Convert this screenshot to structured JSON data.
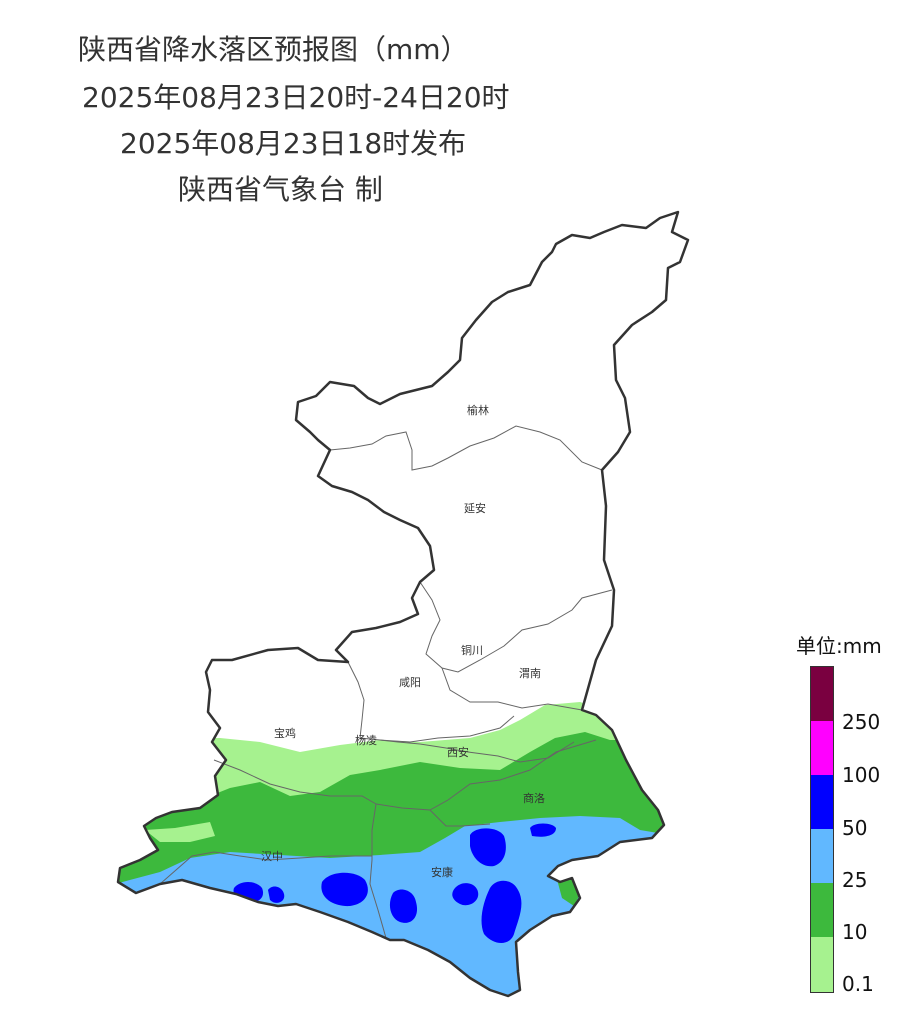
{
  "header": {
    "title": "陕西省降水落区预报图（mm）",
    "valid_period": "2025年08月23日20时-24日20时",
    "issued": "2025年08月23日18时发布",
    "producer": "陕西省气象台 制"
  },
  "cities": [
    "榆林",
    "延安",
    "铜川",
    "咸阳",
    "渭南",
    "宝鸡",
    "杨凌",
    "西安",
    "商洛",
    "汉中",
    "安康"
  ],
  "legend": {
    "title": "单位:mm",
    "labels": [
      "250",
      "100",
      "50",
      "25",
      "10",
      "0.1"
    ],
    "colors": {
      "above_250": "#7a0040",
      "100_250": "#ff00ff",
      "50_100": "#0000ff",
      "25_50": "#61b8ff",
      "10_25": "#3db93d",
      "0.1_10": "#a6f28f"
    }
  },
  "colors": {
    "border": "#333333",
    "background": "#ffffff"
  }
}
